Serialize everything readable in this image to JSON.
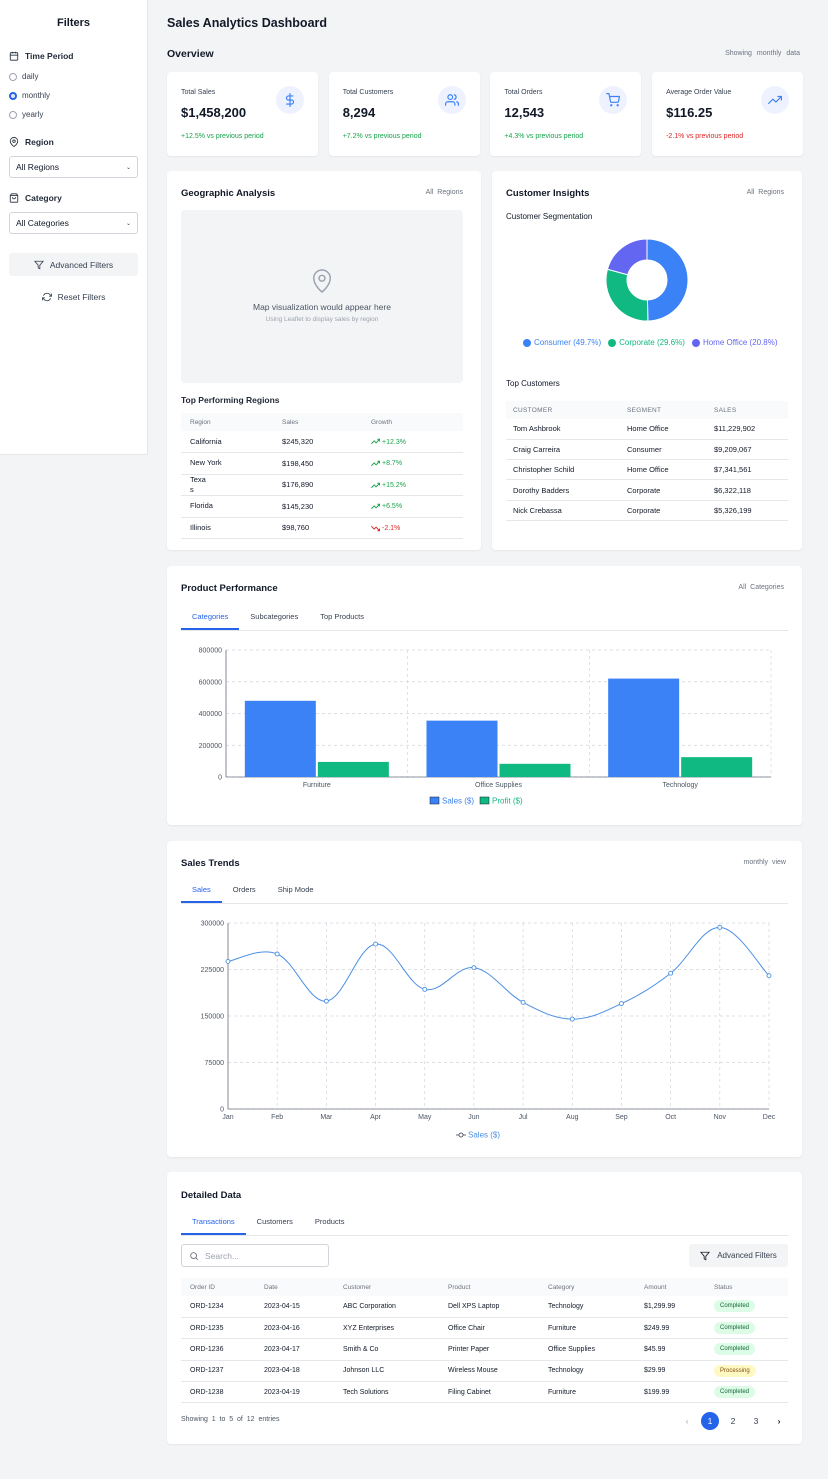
{
  "sidebar": {
    "title": "Filters",
    "time_period": {
      "label": "Time Period",
      "options": [
        {
          "label": "daily",
          "selected": false
        },
        {
          "label": "monthly",
          "selected": true
        },
        {
          "label": "yearly",
          "selected": false
        }
      ]
    },
    "region": {
      "label": "Region",
      "value": "All Regions"
    },
    "category": {
      "label": "Category",
      "value": "All Categories"
    },
    "advanced_filters": "Advanced Filters",
    "reset_filters": "Reset Filters"
  },
  "header": {
    "title": "Sales Analytics Dashboard",
    "overview": "Overview",
    "showing": "Showing",
    "period": "monthly",
    "data_word": "data"
  },
  "kpis": [
    {
      "label": "Total Sales",
      "value": "$1,458,200",
      "change": "+12.5%",
      "suffix": "vs previous period",
      "trend": "pos",
      "icon": "dollar-icon",
      "color": "#3b82f6"
    },
    {
      "label": "Total Customers",
      "value": "8,294",
      "change": "+7.2%",
      "suffix": "vs previous period",
      "trend": "pos",
      "icon": "users-icon",
      "color": "#3b82f6"
    },
    {
      "label": "Total Orders",
      "value": "12,543",
      "change": "+4.3%",
      "suffix": "vs previous period",
      "trend": "pos",
      "icon": "cart-icon",
      "color": "#3b82f6"
    },
    {
      "label": "Average Order Value",
      "value": "$116.25",
      "change": "-2.1%",
      "suffix": "vs previous period",
      "trend": "neg",
      "icon": "trending-up-icon",
      "color": "#3b82f6"
    }
  ],
  "geo": {
    "title": "Geographic Analysis",
    "meta": "All Regions",
    "map_text": "Map visualization would appear here",
    "map_sub": "Using Leaflet to display sales by region",
    "top_title": "Top Performing Regions",
    "columns": [
      "Region",
      "Sales",
      "Growth"
    ],
    "rows": [
      {
        "region": "California",
        "sales": "$245,320",
        "growth": "+12.3%",
        "trend": "pos"
      },
      {
        "region": "New York",
        "sales": "$198,450",
        "growth": "+8.7%",
        "trend": "pos"
      },
      {
        "region": "Texa\ns",
        "sales": "$176,890",
        "growth": "+15.2%",
        "trend": "pos"
      },
      {
        "region": "Florida",
        "sales": "$145,230",
        "growth": "+6.5%",
        "trend": "pos"
      },
      {
        "region": "Illinois",
        "sales": "$98,760",
        "growth": "-2.1%",
        "trend": "neg"
      }
    ]
  },
  "customers": {
    "title": "Customer Insights",
    "meta": "All Regions",
    "seg_title": "Customer Segmentation",
    "top_title": "Top Customers",
    "columns": [
      "CUSTOMER",
      "SEGMENT",
      "SALES"
    ],
    "rows": [
      {
        "name": "Tom Ashbrook",
        "segment": "Home Office",
        "sales": "$11,229,902"
      },
      {
        "name": "Craig Carreira",
        "segment": "Consumer",
        "sales": "$9,209,067"
      },
      {
        "name": "Christopher Schild",
        "segment": "Home Office",
        "sales": "$7,341,561"
      },
      {
        "name": "Dorothy Badders",
        "segment": "Corporate",
        "sales": "$6,322,118"
      },
      {
        "name": "Nick Crebassa",
        "segment": "Corporate",
        "sales": "$5,326,199"
      }
    ]
  },
  "product": {
    "title": "Product Performance",
    "meta": "All Categories",
    "tabs": [
      "Categories",
      "Subcategories",
      "Top Products"
    ]
  },
  "trends": {
    "title": "Sales Trends",
    "meta_period": "monthly",
    "meta_view": "view",
    "tabs": [
      "Sales",
      "Orders",
      "Ship Mode"
    ]
  },
  "detail": {
    "title": "Detailed Data",
    "tabs": [
      "Transactions",
      "Customers",
      "Products"
    ],
    "search_placeholder": "Search...",
    "advanced_filters": "Advanced Filters",
    "columns": [
      "Order ID",
      "Date",
      "Customer",
      "Product",
      "Category",
      "Amount",
      "Status"
    ],
    "rows": [
      {
        "id": "ORD-1234",
        "date": "2023-04-15",
        "customer": "ABC Corporation",
        "product": "Dell XPS Laptop",
        "category": "Technology",
        "amount": "$1,299.99",
        "status": "Completed",
        "status_kind": "completed"
      },
      {
        "id": "ORD-1235",
        "date": "2023-04-16",
        "customer": "XYZ Enterprises",
        "product": "Office Chair",
        "category": "Furniture",
        "amount": "$249.99",
        "status": "Completed",
        "status_kind": "completed"
      },
      {
        "id": "ORD-1236",
        "date": "2023-04-17",
        "customer": "Smith & Co",
        "product": "Printer Paper",
        "category": "Office Supplies",
        "amount": "$45.99",
        "status": "Completed",
        "status_kind": "completed"
      },
      {
        "id": "ORD-1237",
        "date": "2023-04-18",
        "customer": "Johnson LLC",
        "product": "Wireless Mouse",
        "category": "Technology",
        "amount": "$29.99",
        "status": "Processing",
        "status_kind": "processing"
      },
      {
        "id": "ORD-1238",
        "date": "2023-04-19",
        "customer": "Tech Solutions",
        "product": "Filing Cabinet",
        "category": "Furniture",
        "amount": "$199.99",
        "status": "Completed",
        "status_kind": "completed"
      }
    ],
    "showing_text": "Showing  1  to  5  of  12  entries",
    "pages": [
      "1",
      "2",
      "3"
    ],
    "current_page": "1"
  },
  "chart_data": [
    {
      "type": "pie",
      "donut": true,
      "labels": [
        "Consumer",
        "Corporate",
        "Home Office"
      ],
      "legend_labels": [
        "Consumer (49.7%)",
        "Corporate (29.6%)",
        "Home Office (20.8%)"
      ],
      "values": [
        49.7,
        29.6,
        20.8
      ],
      "colors": [
        "#3b82f6",
        "#10b981",
        "#6366f1"
      ],
      "legend": "bottom"
    },
    {
      "type": "bar",
      "categories": [
        "Furniture",
        "Office Supplies",
        "Technology"
      ],
      "series": [
        {
          "name": "Sales ($)",
          "values": [
            480000,
            355000,
            620000
          ],
          "color": "#3b82f6"
        },
        {
          "name": "Profit ($)",
          "values": [
            95000,
            83000,
            125000
          ],
          "color": "#10b981"
        }
      ],
      "yticks": [
        "0",
        "200000",
        "400000",
        "600000",
        "800000"
      ],
      "ylim": [
        0,
        800000
      ],
      "grid": true,
      "legend": "bottom"
    },
    {
      "type": "line",
      "x": [
        "Jan",
        "Feb",
        "Mar",
        "Apr",
        "May",
        "Jun",
        "Jul",
        "Aug",
        "Sep",
        "Oct",
        "Nov",
        "Dec"
      ],
      "series": [
        {
          "name": "Sales ($)",
          "values": [
            238000,
            250000,
            174000,
            266000,
            193000,
            228000,
            172000,
            145000,
            170000,
            219000,
            293000,
            215000
          ],
          "color": "#4a90e2"
        }
      ],
      "yticks": [
        "0",
        "75000",
        "150000",
        "225000",
        "300000"
      ],
      "ylim": [
        0,
        300000
      ],
      "grid": true,
      "legend": "bottom"
    }
  ]
}
